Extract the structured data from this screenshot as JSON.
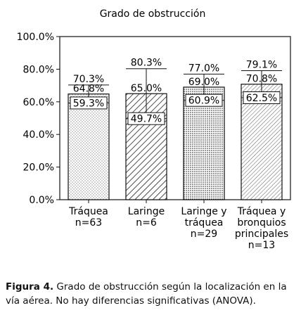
{
  "chart_data": {
    "type": "bar",
    "title": "Grado de obstrucción",
    "ylim": [
      0,
      100
    ],
    "yticks": [
      "0.0%",
      "20.0%",
      "40.0%",
      "60.0%",
      "80.0%",
      "100.0%"
    ],
    "categories": [
      [
        "Tráquea",
        "n=63"
      ],
      [
        "Laringe",
        "n=6"
      ],
      [
        "Laringe y",
        "tráquea",
        "n=29"
      ],
      [
        "Tráquea y",
        "bronquios",
        "principales",
        "n=13"
      ]
    ],
    "mean": [
      64.8,
      65.0,
      69.0,
      70.8
    ],
    "mean_labels": [
      "64.8%",
      "65.0%",
      "69.0%",
      "70.8%"
    ],
    "upper": [
      70.3,
      80.3,
      77.0,
      79.1
    ],
    "upper_labels": [
      "70.3%",
      "80.3%",
      "77.0%",
      "79.1%"
    ],
    "lower": [
      59.3,
      49.7,
      60.9,
      62.5
    ],
    "lower_labels": [
      "59.3%",
      "49.7%",
      "60.9%",
      "62.5%"
    ],
    "patterns": [
      "dots-light",
      "hatch-diagonal",
      "dots-dense",
      "hatch-light"
    ],
    "grid": false
  },
  "caption": {
    "label": "Figura 4.",
    "text": " Grado de obstrucción según la localización en la vía aérea. No hay diferencias significativas (ANOVA)."
  }
}
